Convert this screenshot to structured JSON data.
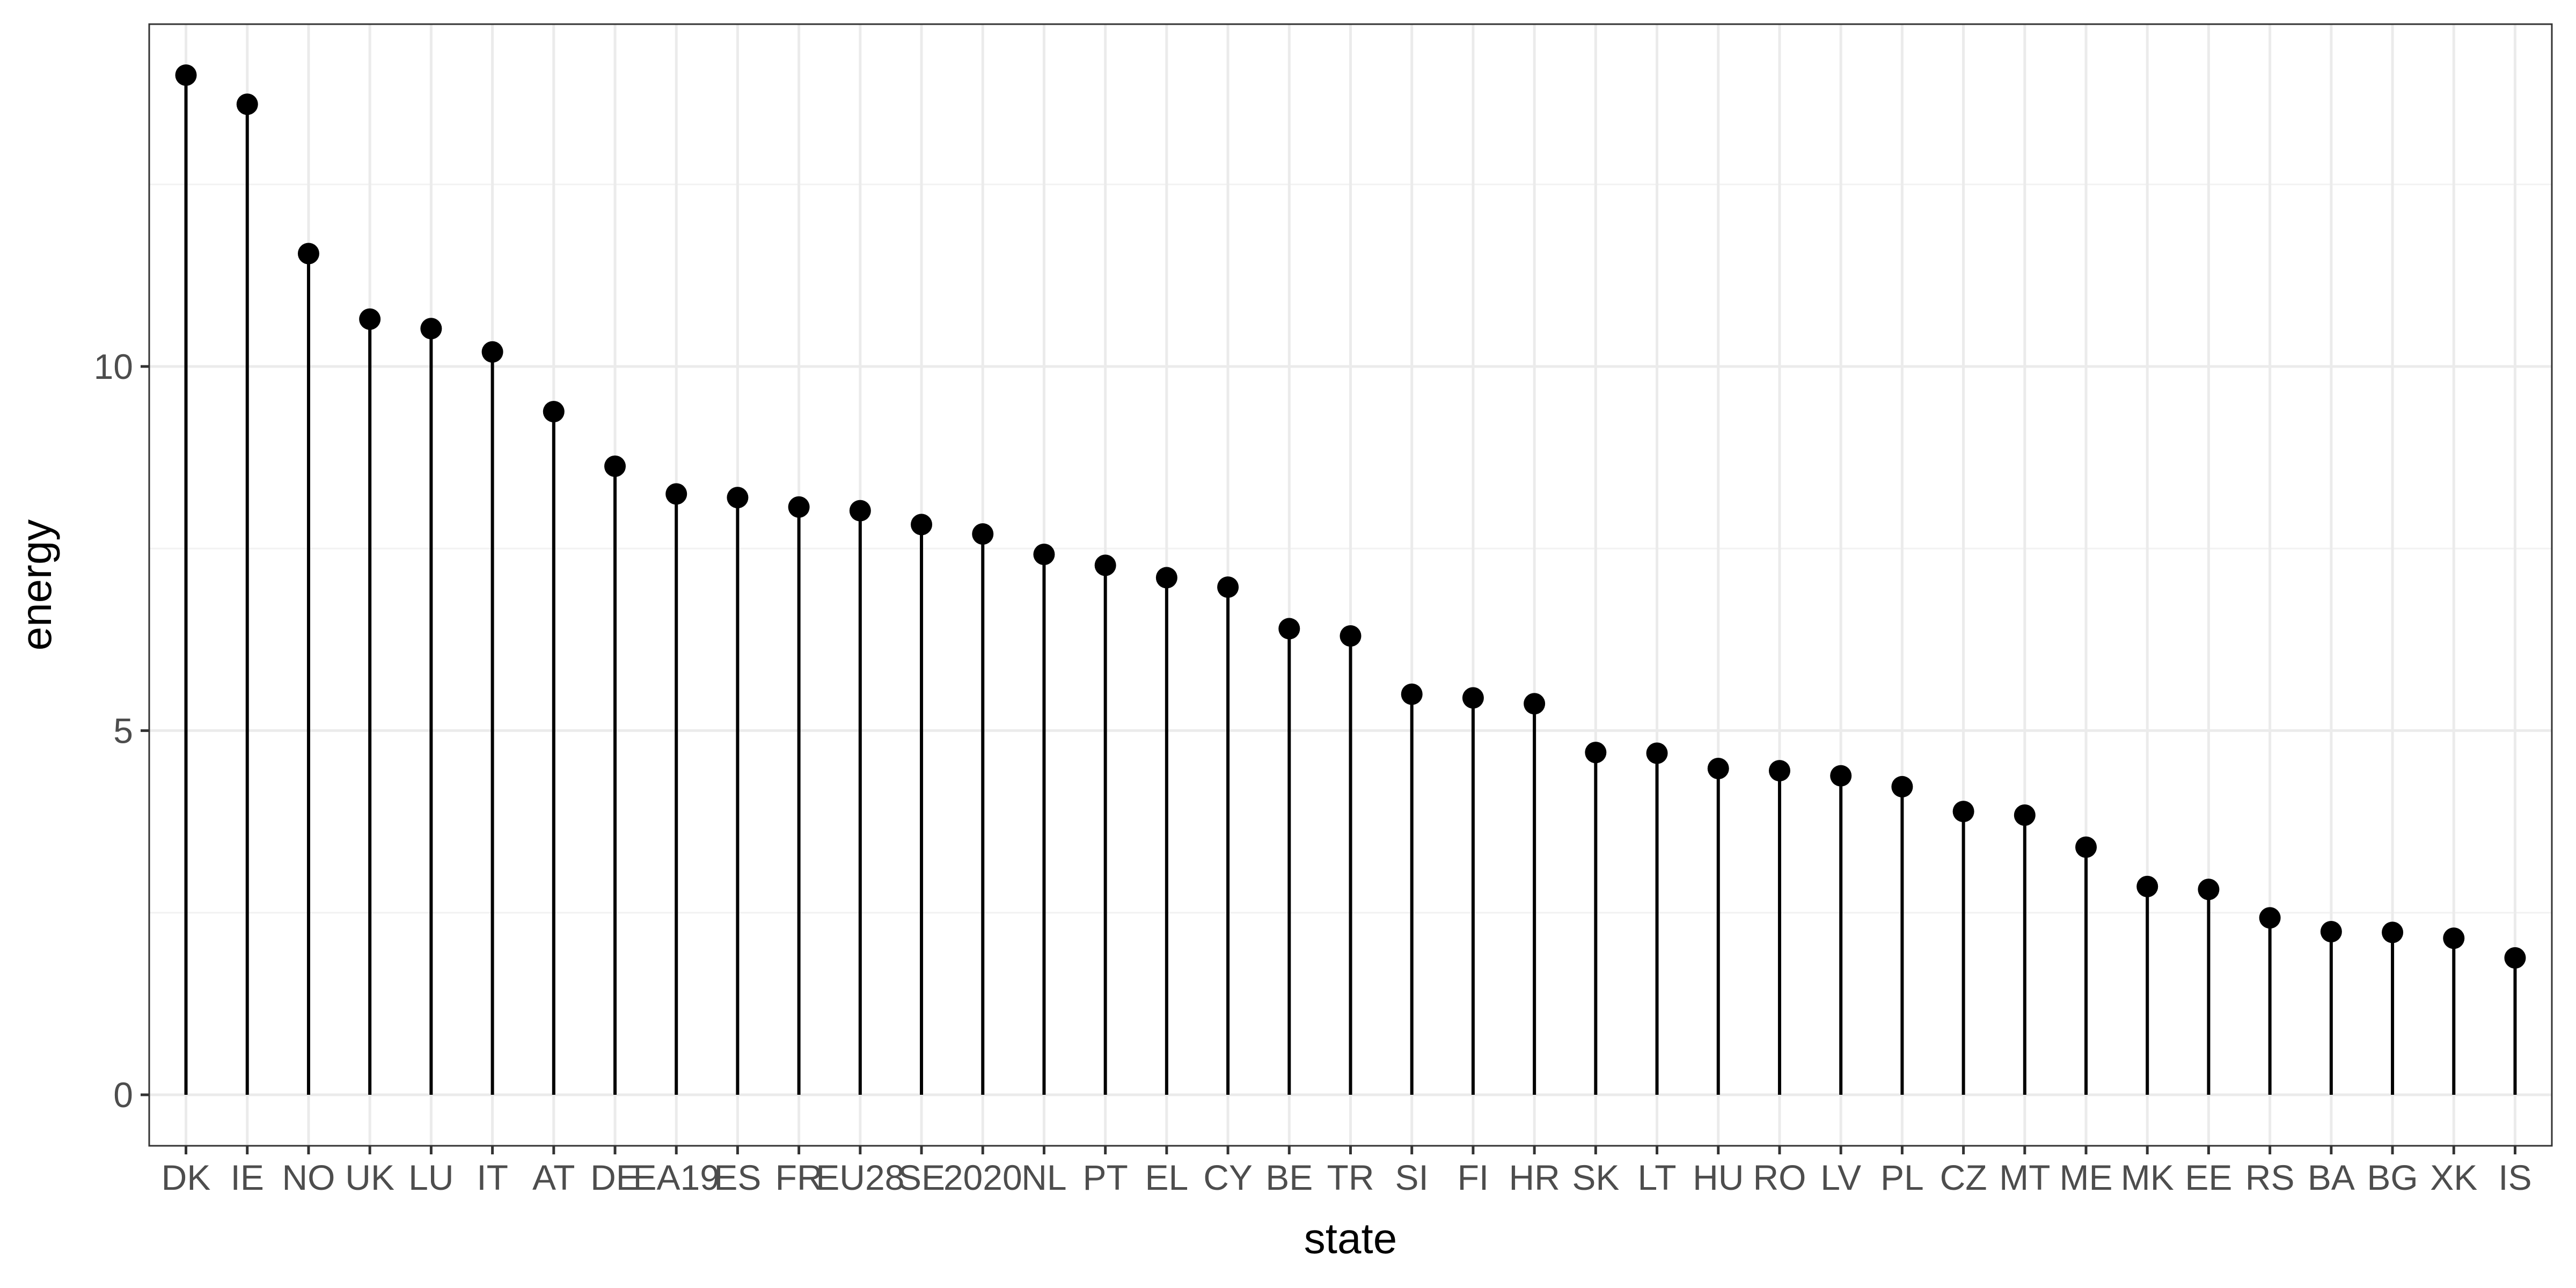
{
  "chart_data": {
    "type": "lollipop",
    "xlabel": "state",
    "ylabel": "energy",
    "ylim": [
      -0.7,
      14.7
    ],
    "yticks": [
      0,
      5,
      10
    ],
    "grid": true,
    "legend": "none",
    "colors": {
      "stem": "#000000",
      "point": "#000000",
      "panel_border": "#333333",
      "grid_major": "#ebebeb",
      "grid_minor": "#f2f2f2",
      "tick_label": "#4d4d4d",
      "background": "#ffffff"
    },
    "categories": [
      "DK",
      "IE",
      "NO",
      "UK",
      "LU",
      "IT",
      "AT",
      "DE",
      "EA19",
      "ES",
      "FR",
      "EU28",
      "SE",
      "2020",
      "NL",
      "PT",
      "EL",
      "CY",
      "BE",
      "TR",
      "SI",
      "FI",
      "HR",
      "SK",
      "LT",
      "HU",
      "RO",
      "LV",
      "PL",
      "CZ",
      "MT",
      "ME",
      "MK",
      "EE",
      "RS",
      "BA",
      "BG",
      "XK",
      "IS"
    ],
    "values": [
      14.0,
      13.6,
      11.55,
      10.65,
      10.52,
      10.2,
      9.38,
      8.63,
      8.25,
      8.2,
      8.07,
      8.02,
      7.83,
      7.7,
      7.42,
      7.27,
      7.1,
      6.97,
      6.4,
      6.3,
      5.5,
      5.45,
      5.37,
      4.7,
      4.69,
      4.48,
      4.45,
      4.38,
      4.23,
      3.89,
      3.84,
      3.4,
      2.86,
      2.82,
      2.43,
      2.24,
      2.23,
      2.15,
      1.88
    ]
  }
}
